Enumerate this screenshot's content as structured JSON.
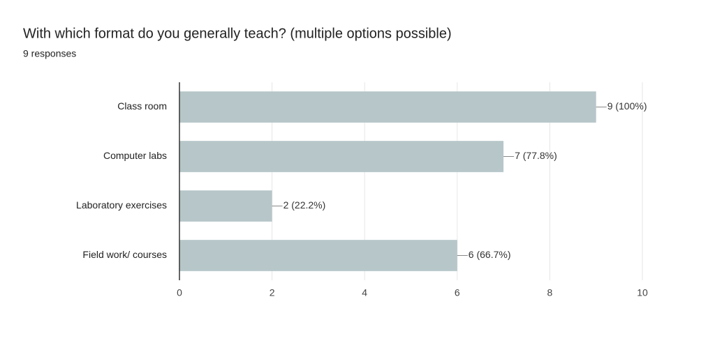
{
  "chart_data": {
    "type": "bar",
    "orientation": "horizontal",
    "title": "With which format do you generally teach?  (multiple options possible)",
    "subtitle": "9 responses",
    "categories": [
      "Class room",
      "Computer labs",
      "Laboratory exercises",
      "Field work/ courses"
    ],
    "values": [
      9,
      7,
      2,
      6
    ],
    "value_labels": [
      "9 (100%)",
      "7 (77.8%)",
      "2 (22.2%)",
      "6 (66.7%)"
    ],
    "color": "#b7c6c9",
    "xlim": [
      0,
      10
    ],
    "xticks": [
      0,
      2,
      4,
      6,
      8,
      10
    ],
    "grid": true
  }
}
